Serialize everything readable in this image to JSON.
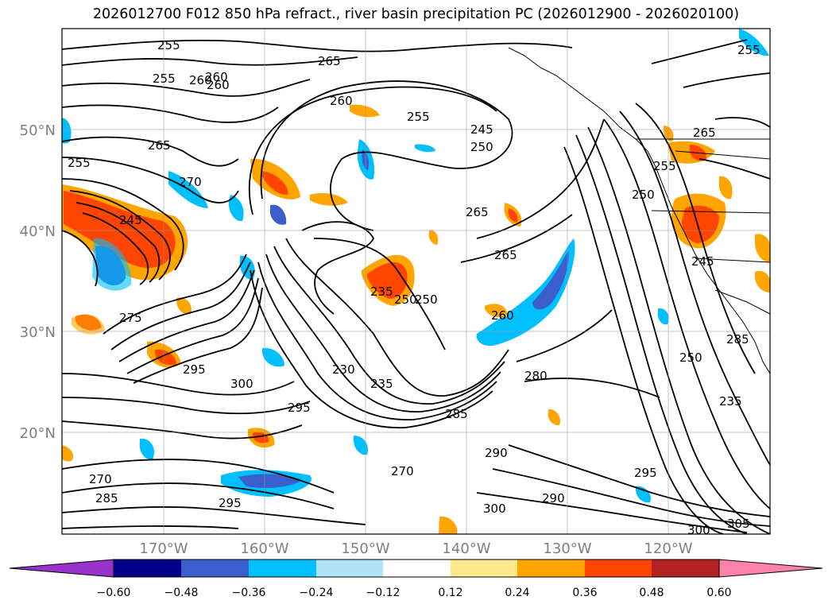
{
  "map": {
    "title": "2026012700 F012 850 hPa refract., river basin precipitation PC (2026012900 - 2026020100)",
    "lat_labels": [
      "50°N",
      "40°N",
      "30°N",
      "20°N"
    ],
    "lon_labels": [
      "170°W",
      "160°W",
      "150°W",
      "140°W",
      "130°W",
      "120°W"
    ],
    "contour_labels": [
      "255",
      "255",
      "255",
      "260",
      "265",
      "260",
      "255",
      "245",
      "250",
      "265",
      "255",
      "260",
      "270",
      "265",
      "245",
      "265",
      "265",
      "260",
      "250",
      "245",
      "275",
      "280",
      "295",
      "300",
      "290",
      "295",
      "270",
      "285",
      "290",
      "295",
      "300",
      "305",
      "300",
      "295",
      "285",
      "270",
      "235",
      "230",
      "235",
      "250",
      "260",
      "255",
      "250",
      "235",
      "285",
      "250"
    ]
  },
  "colorbar": {
    "labels": [
      "−0.60",
      "−0.48",
      "−0.36",
      "−0.24",
      "−0.12",
      "0.12",
      "0.24",
      "0.36",
      "0.48",
      "0.60"
    ],
    "colors": [
      "#9932cc",
      "#00008b",
      "#3a5fcd",
      "#00bfff",
      "#afe3fa",
      "#ffffff",
      "#ffe98a",
      "#ffa500",
      "#ff4500",
      "#b22222",
      "#ff82ab"
    ]
  }
}
